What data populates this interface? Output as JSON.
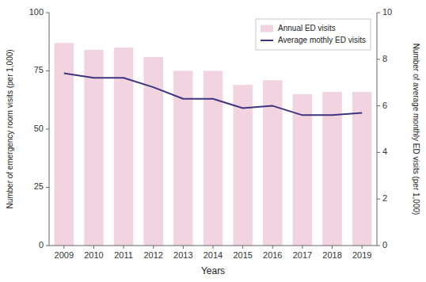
{
  "chart_data": {
    "type": "bar",
    "categories": [
      "2009",
      "2010",
      "2011",
      "2012",
      "2013",
      "2014",
      "2015",
      "2016",
      "2017",
      "2018",
      "2019"
    ],
    "series": [
      {
        "name": "Annual ED visits",
        "type": "bar",
        "color": "#f2d4e0",
        "values": [
          87,
          84,
          85,
          81,
          75,
          75,
          69,
          71,
          65,
          66,
          66
        ]
      },
      {
        "name": "Average mothly ED visits",
        "type": "line",
        "axis": "y2",
        "color": "#3d3580",
        "values": [
          7.4,
          7.2,
          7.2,
          6.8,
          6.3,
          6.3,
          5.9,
          6.0,
          5.6,
          5.6,
          5.7
        ]
      }
    ],
    "xlabel": "Years",
    "ylabel": "Number of emergency room visits (per 1,000)",
    "y2label": "Number of average monthly ED visits (per 1,000)",
    "ylim": [
      0,
      100
    ],
    "yticks": [
      0,
      25,
      50,
      75,
      100
    ],
    "y2lim": [
      0,
      10
    ],
    "y2ticks": [
      0,
      2,
      4,
      6,
      8,
      10
    ],
    "grid": false,
    "legend": "upper right"
  }
}
